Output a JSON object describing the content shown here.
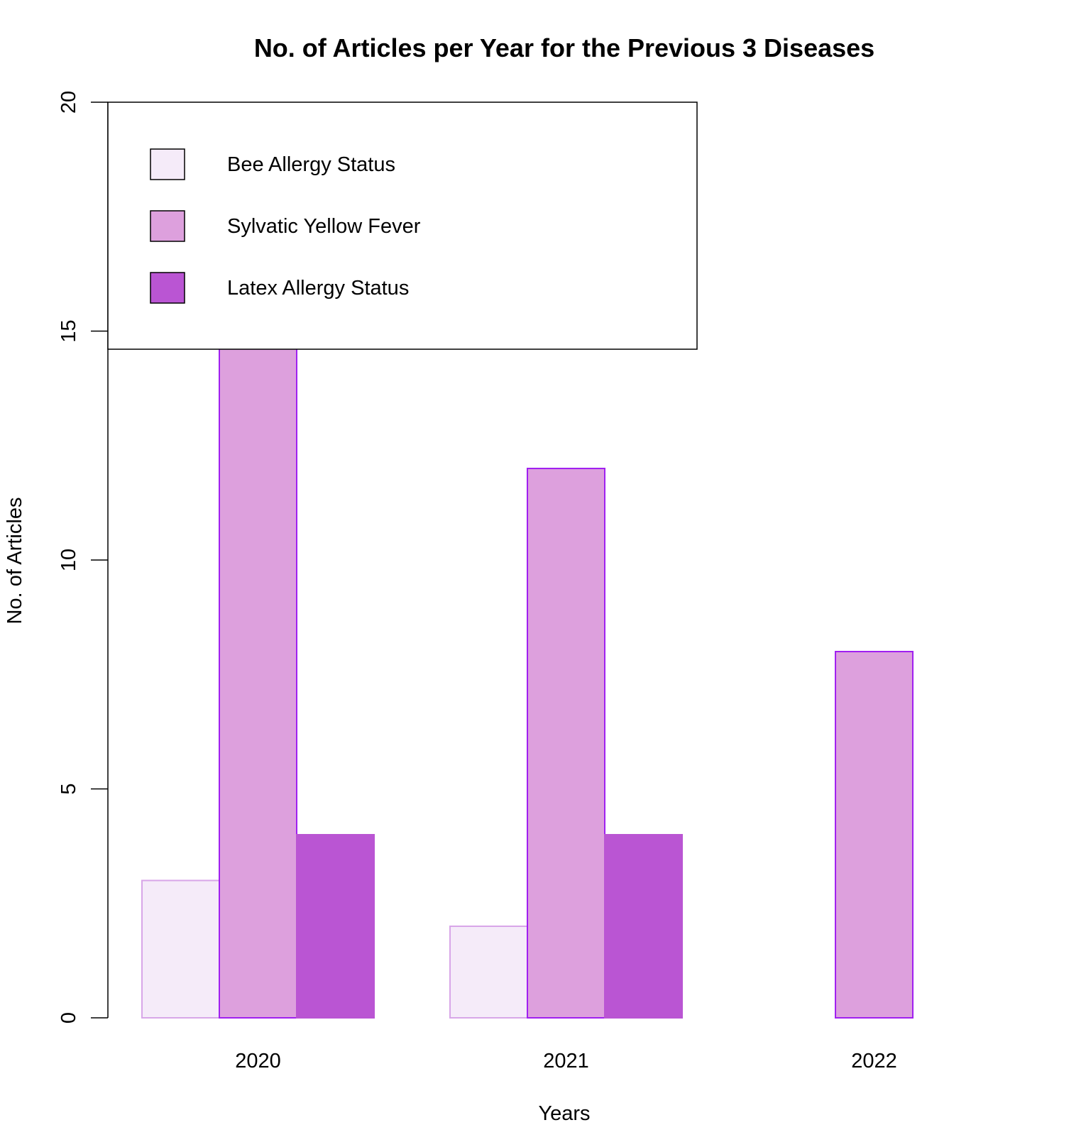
{
  "chart_data": {
    "type": "bar",
    "title": "No. of Articles per Year for the Previous 3 Diseases",
    "xlabel": "Years",
    "ylabel": "No. of Articles",
    "categories": [
      "2020",
      "2021",
      "2022"
    ],
    "series": [
      {
        "name": "Bee Allergy Status",
        "values": [
          3,
          2,
          0
        ],
        "fill": "#F5EBF9",
        "stroke": "#D8A6E8"
      },
      {
        "name": "Sylvatic Yellow Fever",
        "values": [
          19,
          12,
          8
        ],
        "fill": "#DDA0DD",
        "stroke": "#A020F0"
      },
      {
        "name": "Latex Allergy Status",
        "values": [
          4,
          4,
          0
        ],
        "fill": "#BA55D3",
        "stroke": "#BA55D3"
      }
    ],
    "ylim": [
      0,
      20
    ],
    "yticks": [
      0,
      5,
      10,
      15,
      20
    ],
    "grid": false,
    "legend_position": "top-left"
  }
}
